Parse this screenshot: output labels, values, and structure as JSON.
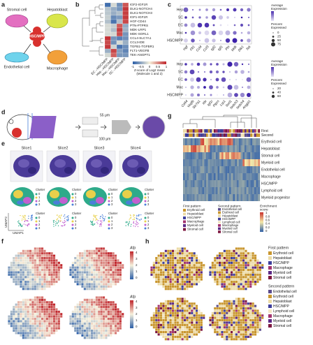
{
  "panel_labels": [
    "a",
    "b",
    "c",
    "d",
    "e",
    "f",
    "g",
    "h"
  ],
  "a": {
    "cells": [
      "Stromal cell",
      "Hepatoblast",
      "HSC/MPP",
      "Endothelial cell",
      "Macrophage"
    ]
  },
  "b": {
    "pairs": [
      "IGF2-IGF1R",
      "DLK1-NOTCH4",
      "DLK1-NOTCH3",
      "IGF1-IGF1R",
      "HGF-CD44",
      "PTN-PTPRS",
      "MDK-LRP1",
      "MDK-SORL1",
      "CCL4-SLC7A1",
      "CCL3-IDE",
      "TGFB1-TGFBR1",
      "FLT1-VEGFB",
      "TEK-ANGPT1"
    ],
    "columns": [
      "EC→HSC/MPP",
      "Hep→HSC/MPP",
      "Mac→HSC/MPP",
      "SC→HSC/MPP"
    ],
    "legend_title": [
      "Z-score of Log2 mean",
      "(Molecule 1 and 2)"
    ],
    "legend_ticks": [
      -1,
      -0.5,
      0,
      0.5,
      1
    ]
  },
  "c": {
    "rows": [
      "Hep",
      "SC",
      "EC",
      "Mac",
      "HSC/MPP"
    ],
    "top_genes": [
      "Hgf",
      "Flt1",
      "Ccl4",
      "Ccl3",
      "Igf2",
      "Igf1",
      "Ptn",
      "Mdk",
      "Dlk1",
      "Tek"
    ],
    "bottom_genes": [
      "Cd44",
      "Vegfb",
      "Slc7a1",
      "Ide",
      "Igf1r",
      "Ptprs",
      "Lrp1",
      "Sorl1",
      "Notch3",
      "Notch4",
      "Angpt1"
    ],
    "avg_title": [
      "Average",
      "Expression"
    ],
    "pct_title": [
      "Percent",
      "Expressed"
    ],
    "top_pct_ticks": [
      0,
      25,
      50,
      75
    ],
    "bottom_pct_ticks": [
      20,
      40,
      60
    ]
  },
  "d": {
    "scale_top": "55 μm",
    "scale_bottom": "100 μm"
  },
  "e": {
    "slices": [
      "Slice1",
      "Slice2",
      "Slice3",
      "Slice4"
    ],
    "cluster_title": "Cluster",
    "clusters": [
      "0",
      "1",
      "2",
      "3"
    ],
    "umap_y": "UMAP2",
    "umap_x": "UMAP1"
  },
  "f": {
    "gene": "Afp",
    "ticks": [
      4,
      3,
      2,
      1,
      0
    ]
  },
  "g": {
    "annot": [
      "First",
      "Second"
    ],
    "rows": [
      "Erythroid cell",
      "Hepatoblast",
      "Stromal cell",
      "Myeloid cell",
      "Endothelial cell",
      "Macrophage",
      "HSC/MPP",
      "Lymphoid cell",
      "Myeloid progenitor"
    ],
    "first_title": "First pattern",
    "first": [
      "Erythroid cell",
      "Hepatoblast",
      "HSC/MPP",
      "Macrophage",
      "Myeloid cell",
      "Stromal cell"
    ],
    "second_title": "Second pattern",
    "second": [
      "Endothelial cell",
      "Erythroid cell",
      "Hepatoblast",
      "HSC/MPP",
      "Lymphoid cell",
      "Macrophage",
      "Myeloid cell",
      "Stromal cell"
    ],
    "score_title": [
      "Enrichment",
      "score"
    ],
    "score_ticks": [
      1,
      0.8,
      0.6,
      0.4,
      0.2,
      0
    ]
  },
  "h": {
    "first_title": "First pattern",
    "first": [
      "Erythroid cell",
      "Hepatoblast",
      "HSC/MPP",
      "Macrophage",
      "Myeloid cell",
      "Stromal cell"
    ],
    "second_title": "Second pattern",
    "second": [
      "Endothelial cell",
      "Erythroid cell",
      "Hepatoblast",
      "HSC/MPP",
      "Lymphoid cell",
      "Macrophage",
      "Myeloid cell",
      "Stromal cell"
    ]
  },
  "colors": {
    "first": [
      "#c9962e",
      "#ecdba6",
      "#3e3f9c",
      "#a3346f",
      "#5c2a86",
      "#7e1840"
    ],
    "second": [
      "#5a4b8c",
      "#c9962e",
      "#ecdba6",
      "#3e3f9c",
      "#f3e6c4",
      "#a3346f",
      "#5c2a86",
      "#7e1840"
    ],
    "clusters": [
      "#2eaa8a",
      "#e8d04a",
      "#c260d0",
      "#4a7fd8"
    ]
  }
}
